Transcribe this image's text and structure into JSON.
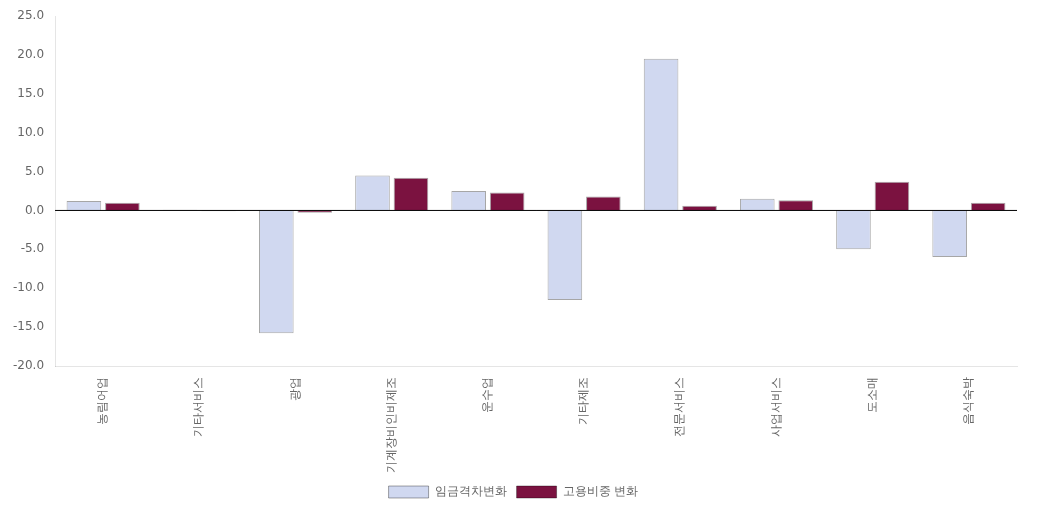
{
  "chart_data": {
    "type": "bar",
    "categories": [
      "농림어업",
      "기타서비스",
      "광업",
      "기계장비인비제조",
      "운수업",
      "기타제조",
      "전문서비스",
      "사업서비스",
      "도소매",
      "음식숙박"
    ],
    "series": [
      {
        "name": "임금격차변화",
        "color": "#d0d8f0",
        "values": [
          1.2,
          0.1,
          -15.8,
          4.5,
          2.5,
          -11.5,
          19.5,
          1.5,
          -5.0,
          -6.0
        ]
      },
      {
        "name": "고용비중 변화",
        "color": "#7b1240",
        "values": [
          1.0,
          -0.1,
          -0.3,
          4.2,
          2.3,
          1.8,
          0.6,
          1.3,
          3.7,
          1.0
        ]
      }
    ],
    "ylim": [
      -20.0,
      25.0
    ],
    "yticks": [
      {
        "value": -20.0,
        "label": "-20.0"
      },
      {
        "value": -15.0,
        "label": "-15.0"
      },
      {
        "value": -10.0,
        "label": "-10.0"
      },
      {
        "value": -5.0,
        "label": "-5.0"
      },
      {
        "value": 0.0,
        "label": "0.0"
      },
      {
        "value": 5.0,
        "label": "5.0"
      },
      {
        "value": 10.0,
        "label": "10.0"
      },
      {
        "value": 15.0,
        "label": "15.0"
      },
      {
        "value": 20.0,
        "label": "20.0"
      },
      {
        "value": 25.0,
        "label": "25.0"
      }
    ],
    "grid": false,
    "legend": "bottom"
  }
}
